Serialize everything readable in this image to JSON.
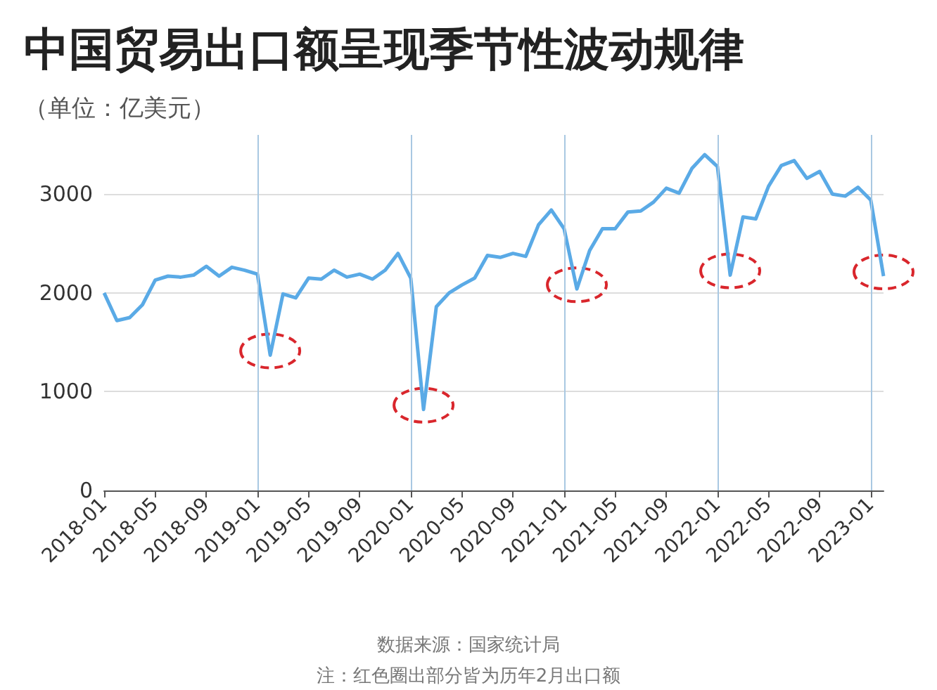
{
  "chart_data": {
    "type": "line",
    "title": "中国贸易出口额呈现季节性波动规律",
    "subtitle": "（单位：亿美元）",
    "annotations": [
      "数据来源：国家统计局",
      "注：红色圈出部分皆为历年2月出口额"
    ],
    "categories": [
      "2018-01",
      null,
      null,
      null,
      "2018-05",
      null,
      null,
      null,
      "2018-09",
      null,
      null,
      null,
      "2019-01",
      null,
      null,
      null,
      "2019-05",
      null,
      null,
      null,
      "2019-09",
      null,
      null,
      null,
      "2020-01",
      null,
      null,
      null,
      "2020-05",
      null,
      null,
      null,
      "2020-09",
      null,
      null,
      null,
      "2021-01",
      null,
      null,
      null,
      "2021-05",
      null,
      null,
      null,
      "2021-09",
      null,
      null,
      null,
      "2022-01",
      null,
      null,
      null,
      "2022-05",
      null,
      null,
      null,
      "2022-09",
      null,
      null,
      null,
      "2023-01",
      null
    ],
    "series": [
      {
        "color": "#5aaae6",
        "values": [
          2000,
          1720,
          1750,
          1880,
          2130,
          2170,
          2160,
          2180,
          2270,
          2170,
          2260,
          2230,
          2190,
          1370,
          1990,
          1950,
          2150,
          2140,
          2230,
          2160,
          2190,
          2140,
          2230,
          2400,
          2150,
          820,
          1860,
          2000,
          2080,
          2150,
          2380,
          2360,
          2400,
          2370,
          2690,
          2840,
          2650,
          2040,
          2430,
          2650,
          2650,
          2820,
          2830,
          2920,
          3060,
          3010,
          3260,
          3400,
          3280,
          2180,
          2770,
          2750,
          3080,
          3290,
          3340,
          3160,
          3230,
          3000,
          2980,
          3070,
          2940,
          2170
        ]
      }
    ],
    "ylim": [
      0,
      3600
    ],
    "yticks": [
      0,
      1000,
      2000,
      3000
    ],
    "grid": "y",
    "marker": "none",
    "line_style": "solid",
    "ref_lines": [
      {
        "axis": "x",
        "value": "2019-01",
        "color": "#a9c8e2"
      },
      {
        "axis": "x",
        "value": "2020-01",
        "color": "#a9c8e2"
      },
      {
        "axis": "x",
        "value": "2021-01",
        "color": "#a9c8e2"
      },
      {
        "axis": "x",
        "value": "2022-01",
        "color": "#a9c8e2"
      },
      {
        "axis": "x",
        "value": "2023-01",
        "color": "#a9c8e2"
      }
    ]
  }
}
